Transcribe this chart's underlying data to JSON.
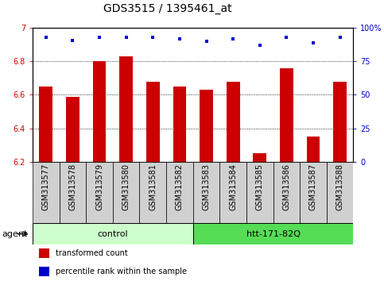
{
  "title": "GDS3515 / 1395461_at",
  "samples": [
    "GSM313577",
    "GSM313578",
    "GSM313579",
    "GSM313580",
    "GSM313581",
    "GSM313582",
    "GSM313583",
    "GSM313584",
    "GSM313585",
    "GSM313586",
    "GSM313587",
    "GSM313588"
  ],
  "bar_values": [
    6.65,
    6.59,
    6.8,
    6.83,
    6.68,
    6.65,
    6.63,
    6.68,
    6.25,
    6.76,
    6.35,
    6.68
  ],
  "dot_values": [
    93,
    91,
    93,
    93,
    93,
    92,
    90,
    92,
    87,
    93,
    89,
    93
  ],
  "ylim_left": [
    6.2,
    7.0
  ],
  "ylim_right": [
    0,
    100
  ],
  "yticks_left": [
    6.2,
    6.4,
    6.6,
    6.8,
    7.0
  ],
  "ytick_labels_left": [
    "6.2",
    "6.4",
    "6.6",
    "6.8",
    "7"
  ],
  "yticks_right": [
    0,
    25,
    50,
    75,
    100
  ],
  "ytick_labels_right": [
    "0",
    "25",
    "50",
    "75",
    "100%"
  ],
  "bar_color": "#cc0000",
  "dot_color": "#0000cc",
  "bar_bottom": 6.2,
  "groups": [
    {
      "label": "control",
      "start": 0,
      "end": 5,
      "color": "#ccffcc"
    },
    {
      "label": "htt-171-82Q",
      "start": 6,
      "end": 11,
      "color": "#55dd55"
    }
  ],
  "agent_label": "agent",
  "legend_bar_label": "transformed count",
  "legend_dot_label": "percentile rank within the sample",
  "title_fontsize": 10,
  "tick_fontsize": 7,
  "label_fontsize": 8,
  "sample_bg_color": "#d0d0d0",
  "plot_bg_color": "#ffffff",
  "grid_yticks": [
    6.4,
    6.6,
    6.8
  ]
}
